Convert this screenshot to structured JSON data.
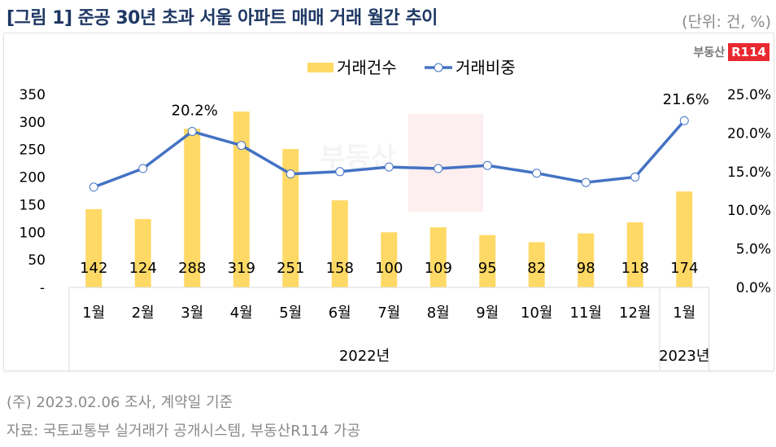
{
  "header": {
    "title": "[그림 1] 준공 30년 초과 서울 아파트 매매 거래 월간 추이",
    "unit": "(단위: 건, %)"
  },
  "logo": {
    "text": "부동산",
    "badge": "R114"
  },
  "footnotes": {
    "note": "(주) 2023.02.06 조사, 계약일 기준",
    "source": "자료: 국토교통부 실거래가 공개시스템, 부동산R114 가공"
  },
  "chart_data": {
    "type": "bar+line",
    "categories": [
      "1월",
      "2월",
      "3월",
      "4월",
      "5월",
      "6월",
      "7월",
      "8월",
      "9월",
      "10월",
      "11월",
      "12월",
      "1월"
    ],
    "year_groups": [
      {
        "label": "2022년",
        "span": 12
      },
      {
        "label": "2023년",
        "span": 1
      }
    ],
    "series": [
      {
        "name": "거래건수",
        "type": "bar",
        "axis": "left",
        "color": "#ffd966",
        "values": [
          142,
          124,
          288,
          319,
          251,
          158,
          100,
          109,
          95,
          82,
          98,
          118,
          174
        ],
        "data_labels": [
          "142",
          "124",
          "288",
          "319",
          "251",
          "158",
          "100",
          "109",
          "95",
          "82",
          "98",
          "118",
          "174"
        ]
      },
      {
        "name": "거래비중",
        "type": "line",
        "axis": "right",
        "color": "#4472c4",
        "values": [
          13.0,
          15.4,
          20.2,
          18.4,
          14.7,
          15.0,
          15.6,
          15.4,
          15.8,
          14.8,
          13.6,
          14.3,
          21.6
        ],
        "data_labels": {
          "2": "20.2%",
          "12": "21.6%"
        }
      }
    ],
    "left_axis": {
      "ylim": [
        0,
        350
      ],
      "ticks": [
        "-",
        "50",
        "100",
        "150",
        "200",
        "250",
        "300",
        "350"
      ]
    },
    "right_axis": {
      "ylim": [
        0,
        25
      ],
      "ticks": [
        "0.0%",
        "5.0%",
        "10.0%",
        "15.0%",
        "20.0%",
        "25.0%"
      ]
    },
    "legend": "top-center",
    "grid": false
  }
}
